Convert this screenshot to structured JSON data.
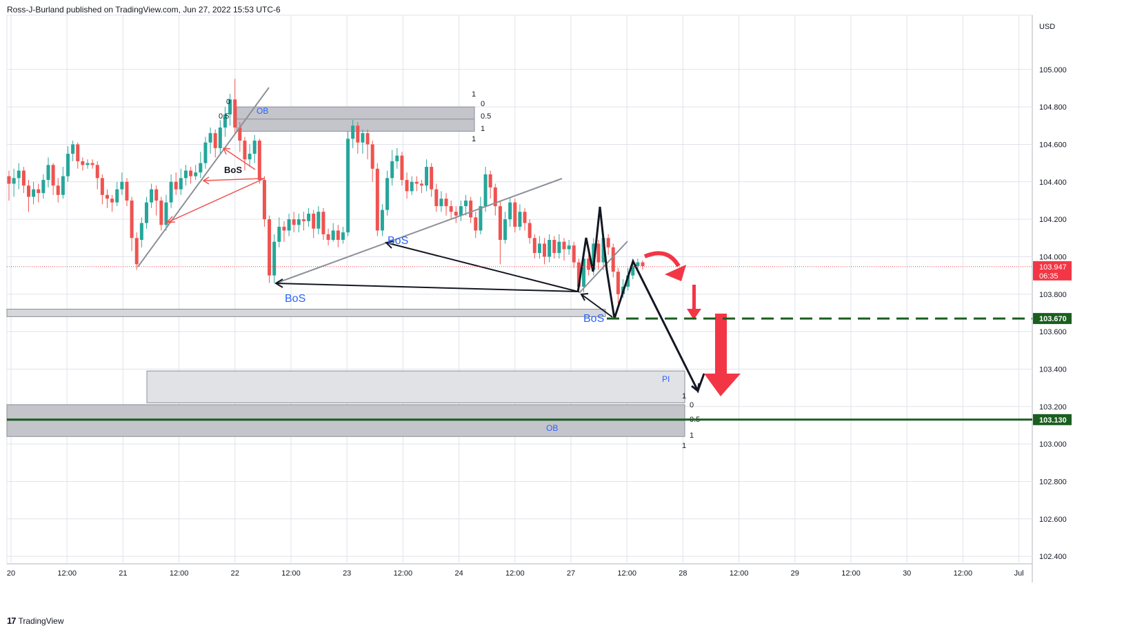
{
  "header": {
    "published_by": "Ross-J-Burland published on TradingView.com, Jun 27, 2022 15:53 UTC-6"
  },
  "footer": {
    "brand": "TradingView",
    "logo_glyph": "17"
  },
  "chart_data": {
    "type": "candlestick",
    "symbol_currency": "USD",
    "price_axis": {
      "ylim": [
        102.36,
        105.29
      ],
      "ticks": [
        "105.000",
        "104.800",
        "104.600",
        "104.400",
        "104.200",
        "104.000",
        "103.800",
        "103.600",
        "103.400",
        "103.200",
        "103.000",
        "102.800",
        "102.600",
        "102.400"
      ]
    },
    "time_axis": {
      "labels": [
        "20",
        "12:00",
        "21",
        "12:00",
        "22",
        "12:00",
        "23",
        "12:00",
        "24",
        "12:00",
        "27",
        "12:00",
        "28",
        "12:00",
        "29",
        "12:00",
        "30",
        "12:00",
        "Jul"
      ]
    },
    "grid": true,
    "colors": {
      "up": "#26a69a",
      "down": "#ef5350",
      "level_green": "#1b5e20",
      "arrow_red": "#f23645",
      "text_blue": "#2962ff",
      "price_label_bg": "#f23645"
    },
    "last_price": {
      "value": "103.947",
      "countdown": "06:35"
    },
    "levels": [
      {
        "value": 103.67,
        "label": "103.670",
        "style": "dashed",
        "color": "#1b5e20"
      },
      {
        "value": 103.13,
        "label": "103.130",
        "style": "solid",
        "color": "#1b5e20"
      }
    ],
    "zones": [
      {
        "label": "OB",
        "top": 104.8,
        "bottom": 104.67
      },
      {
        "label": "",
        "top": 103.72,
        "bottom": 103.68
      },
      {
        "label": "PI",
        "top": 103.39,
        "bottom": 103.22
      },
      {
        "label": "OB",
        "top": 103.21,
        "bottom": 103.04
      }
    ],
    "fib_labels": {
      "upper_left": [
        "0",
        "0.5"
      ],
      "upper_right": [
        "1",
        "0",
        "0.5",
        "1",
        "1"
      ],
      "lower_right": [
        "1",
        "0",
        "0.5",
        "1",
        "1"
      ]
    },
    "annotations": [
      "BoS",
      "BoS",
      "BoS",
      "BoS"
    ],
    "candles": [
      [
        104.43,
        104.39,
        104.46,
        104.3
      ],
      [
        104.39,
        104.42,
        104.47,
        104.32
      ],
      [
        104.42,
        104.46,
        104.5,
        104.36
      ],
      [
        104.46,
        104.38,
        104.48,
        104.34
      ],
      [
        104.38,
        104.32,
        104.41,
        104.24
      ],
      [
        104.32,
        104.36,
        104.4,
        104.28
      ],
      [
        104.36,
        104.34,
        104.39,
        104.29
      ],
      [
        104.34,
        104.41,
        104.44,
        104.31
      ],
      [
        104.41,
        104.49,
        104.53,
        104.37
      ],
      [
        104.49,
        104.38,
        104.5,
        104.33
      ],
      [
        104.38,
        104.33,
        104.42,
        104.29
      ],
      [
        104.33,
        104.43,
        104.48,
        104.31
      ],
      [
        104.43,
        104.55,
        104.59,
        104.4
      ],
      [
        104.55,
        104.6,
        104.62,
        104.51
      ],
      [
        104.6,
        104.51,
        104.61,
        104.47
      ],
      [
        104.51,
        104.49,
        104.53,
        104.46
      ],
      [
        104.49,
        104.5,
        104.52,
        104.47
      ],
      [
        104.5,
        104.49,
        104.52,
        104.47
      ],
      [
        104.49,
        104.42,
        104.51,
        104.36
      ],
      [
        104.42,
        104.33,
        104.44,
        104.28
      ],
      [
        104.33,
        104.31,
        104.36,
        104.26
      ],
      [
        104.31,
        104.29,
        104.33,
        104.24
      ],
      [
        104.29,
        104.36,
        104.4,
        104.27
      ],
      [
        104.36,
        104.4,
        104.45,
        104.33
      ],
      [
        104.4,
        104.3,
        104.42,
        104.27
      ],
      [
        104.3,
        104.1,
        104.32,
        104.03
      ],
      [
        104.1,
        103.96,
        104.13,
        103.93
      ],
      [
        104.09,
        104.18,
        104.21,
        104.05
      ],
      [
        104.18,
        104.29,
        104.32,
        104.15
      ],
      [
        104.29,
        104.36,
        104.39,
        104.26
      ],
      [
        104.36,
        104.3,
        104.38,
        104.22
      ],
      [
        104.3,
        104.17,
        104.32,
        104.14
      ],
      [
        104.17,
        104.29,
        104.33,
        104.14
      ],
      [
        104.29,
        104.4,
        104.44,
        104.26
      ],
      [
        104.4,
        104.36,
        104.45,
        104.33
      ],
      [
        104.36,
        104.42,
        104.47,
        104.33
      ],
      [
        104.42,
        104.46,
        104.49,
        104.38
      ],
      [
        104.46,
        104.43,
        104.48,
        104.39
      ],
      [
        104.43,
        104.45,
        104.49,
        104.41
      ],
      [
        104.45,
        104.5,
        104.56,
        104.42
      ],
      [
        104.5,
        104.61,
        104.64,
        104.47
      ],
      [
        104.61,
        104.66,
        104.69,
        104.55
      ],
      [
        104.66,
        104.58,
        104.68,
        104.53
      ],
      [
        104.58,
        104.69,
        104.73,
        104.55
      ],
      [
        104.69,
        104.76,
        104.8,
        104.64
      ],
      [
        104.76,
        104.84,
        104.87,
        104.7
      ],
      [
        104.84,
        104.69,
        104.95,
        104.66
      ],
      [
        104.69,
        104.62,
        104.72,
        104.56
      ],
      [
        104.62,
        104.52,
        104.64,
        104.46
      ],
      [
        104.52,
        104.55,
        104.6,
        104.48
      ],
      [
        104.55,
        104.62,
        104.65,
        104.5
      ],
      [
        104.62,
        104.41,
        104.63,
        104.39
      ],
      [
        104.41,
        104.2,
        104.43,
        104.16
      ],
      [
        104.2,
        103.9,
        104.22,
        103.86
      ],
      [
        103.9,
        104.08,
        104.12,
        103.86
      ],
      [
        104.08,
        104.16,
        104.21,
        104.05
      ],
      [
        104.16,
        104.14,
        104.19,
        104.08
      ],
      [
        104.14,
        104.2,
        104.23,
        104.11
      ],
      [
        104.2,
        104.17,
        104.24,
        104.13
      ],
      [
        104.17,
        104.2,
        104.23,
        104.13
      ],
      [
        104.2,
        104.19,
        104.24,
        104.14
      ],
      [
        104.19,
        104.23,
        104.26,
        104.16
      ],
      [
        104.23,
        104.15,
        104.25,
        104.1
      ],
      [
        104.15,
        104.24,
        104.27,
        104.12
      ],
      [
        104.24,
        104.12,
        104.26,
        104.09
      ],
      [
        104.12,
        104.09,
        104.15,
        104.06
      ],
      [
        104.09,
        104.14,
        104.18,
        104.08
      ],
      [
        104.14,
        104.09,
        104.17,
        104.05
      ],
      [
        104.09,
        104.13,
        104.16,
        104.07
      ],
      [
        104.13,
        104.63,
        104.67,
        104.11
      ],
      [
        104.63,
        104.7,
        104.73,
        104.58
      ],
      [
        104.7,
        104.61,
        104.72,
        104.55
      ],
      [
        104.61,
        104.66,
        104.68,
        104.55
      ],
      [
        104.66,
        104.6,
        104.68,
        104.52
      ],
      [
        104.6,
        104.47,
        104.62,
        104.4
      ],
      [
        104.47,
        104.14,
        104.5,
        104.11
      ],
      [
        104.14,
        104.25,
        104.28,
        104.11
      ],
      [
        104.25,
        104.42,
        104.46,
        104.22
      ],
      [
        104.42,
        104.51,
        104.57,
        104.38
      ],
      [
        104.51,
        104.54,
        104.58,
        104.47
      ],
      [
        104.54,
        104.41,
        104.56,
        104.38
      ],
      [
        104.41,
        104.35,
        104.45,
        104.31
      ],
      [
        104.35,
        104.4,
        104.43,
        104.33
      ],
      [
        104.4,
        104.39,
        104.43,
        104.35
      ],
      [
        104.39,
        104.38,
        104.41,
        104.34
      ],
      [
        104.38,
        104.48,
        104.52,
        104.35
      ],
      [
        104.48,
        104.36,
        104.5,
        104.32
      ],
      [
        104.36,
        104.27,
        104.39,
        104.24
      ],
      [
        104.27,
        104.31,
        104.35,
        104.24
      ],
      [
        104.31,
        104.27,
        104.34,
        104.22
      ],
      [
        104.27,
        104.24,
        104.3,
        104.2
      ],
      [
        104.24,
        104.22,
        104.27,
        104.18
      ],
      [
        104.22,
        104.27,
        104.3,
        104.19
      ],
      [
        104.27,
        104.3,
        104.33,
        104.22
      ],
      [
        104.3,
        104.21,
        104.32,
        104.18
      ],
      [
        104.21,
        104.14,
        104.24,
        104.1
      ],
      [
        104.14,
        104.27,
        104.32,
        104.12
      ],
      [
        104.27,
        104.44,
        104.48,
        104.24
      ],
      [
        104.44,
        104.37,
        104.46,
        104.31
      ],
      [
        104.37,
        104.27,
        104.39,
        104.22
      ],
      [
        104.27,
        104.09,
        104.3,
        103.96
      ],
      [
        104.09,
        104.2,
        104.24,
        104.07
      ],
      [
        104.2,
        104.29,
        104.32,
        104.16
      ],
      [
        104.29,
        104.16,
        104.31,
        104.13
      ],
      [
        104.16,
        104.24,
        104.28,
        104.14
      ],
      [
        104.24,
        104.18,
        104.26,
        104.14
      ],
      [
        104.18,
        104.1,
        104.2,
        104.07
      ],
      [
        104.1,
        104.02,
        104.12,
        103.99
      ],
      [
        104.02,
        104.07,
        104.11,
        103.99
      ],
      [
        104.07,
        104.0,
        104.1,
        103.96
      ],
      [
        104.0,
        104.09,
        104.12,
        103.97
      ],
      [
        104.09,
        104.02,
        104.11,
        103.99
      ],
      [
        104.02,
        104.08,
        104.12,
        103.99
      ],
      [
        104.08,
        104.04,
        104.1,
        103.98
      ],
      [
        104.04,
        104.06,
        104.09,
        104.01
      ],
      [
        104.06,
        103.97,
        104.08,
        103.94
      ],
      [
        103.97,
        103.84,
        103.99,
        103.81
      ],
      [
        103.84,
        103.99,
        104.03,
        103.81
      ],
      [
        103.99,
        103.93,
        104.01,
        103.9
      ],
      [
        103.93,
        104.07,
        104.1,
        103.9
      ],
      [
        104.07,
        103.97,
        104.09,
        103.93
      ],
      [
        103.97,
        104.1,
        104.12,
        103.93
      ],
      [
        104.1,
        104.05,
        104.12,
        104.01
      ],
      [
        104.05,
        103.92,
        104.07,
        103.89
      ],
      [
        103.92,
        103.8,
        103.94,
        103.75
      ],
      [
        103.8,
        103.84,
        103.88,
        103.78
      ],
      [
        103.84,
        103.9,
        103.94,
        103.82
      ],
      [
        103.9,
        103.95,
        103.98,
        103.88
      ],
      [
        103.95,
        103.97,
        103.99,
        103.93
      ],
      [
        103.97,
        103.95,
        103.98,
        103.93
      ]
    ]
  }
}
